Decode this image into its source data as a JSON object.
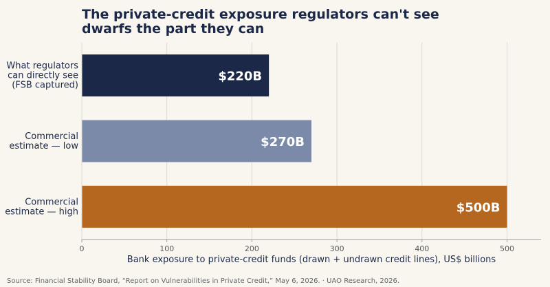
{
  "chart_data": {
    "type": "bar",
    "orientation": "horizontal",
    "title_lines": [
      "The private-credit exposure regulators can't see",
      "dwarfs the part they can"
    ],
    "categories": [
      [
        "What regulators",
        "can directly see",
        "(FSB captured)"
      ],
      [
        "Commercial",
        "estimate — low"
      ],
      [
        "Commercial",
        "estimate — high"
      ]
    ],
    "values": [
      220,
      270,
      500
    ],
    "value_labels": [
      "$220B",
      "$270B",
      "$500B"
    ],
    "bar_colors": [
      "#1b2847",
      "#7b8aa8",
      "#b5661f"
    ],
    "xlabel": "Bank exposure to private-credit funds (drawn + undrawn credit lines), US$ billions",
    "ylabel": "",
    "xlim": [
      0,
      540
    ],
    "xticks": [
      0,
      100,
      200,
      300,
      400,
      500
    ],
    "grid": "vertical",
    "legend": "none"
  },
  "source": "Source: Financial Stability Board, “Report on Vulnerabilities in Private Credit,” May 6, 2026.  ·  UAO Research, 2026.",
  "colors": {
    "background": "#f9f6f0",
    "title": "#1b2847",
    "axis_text": "#1b2847",
    "tick_text": "#555555",
    "grid": "#dcd8d0",
    "axis_line": "#9a9a9a",
    "value_label": "#ffffff",
    "source_text": "#666666"
  }
}
